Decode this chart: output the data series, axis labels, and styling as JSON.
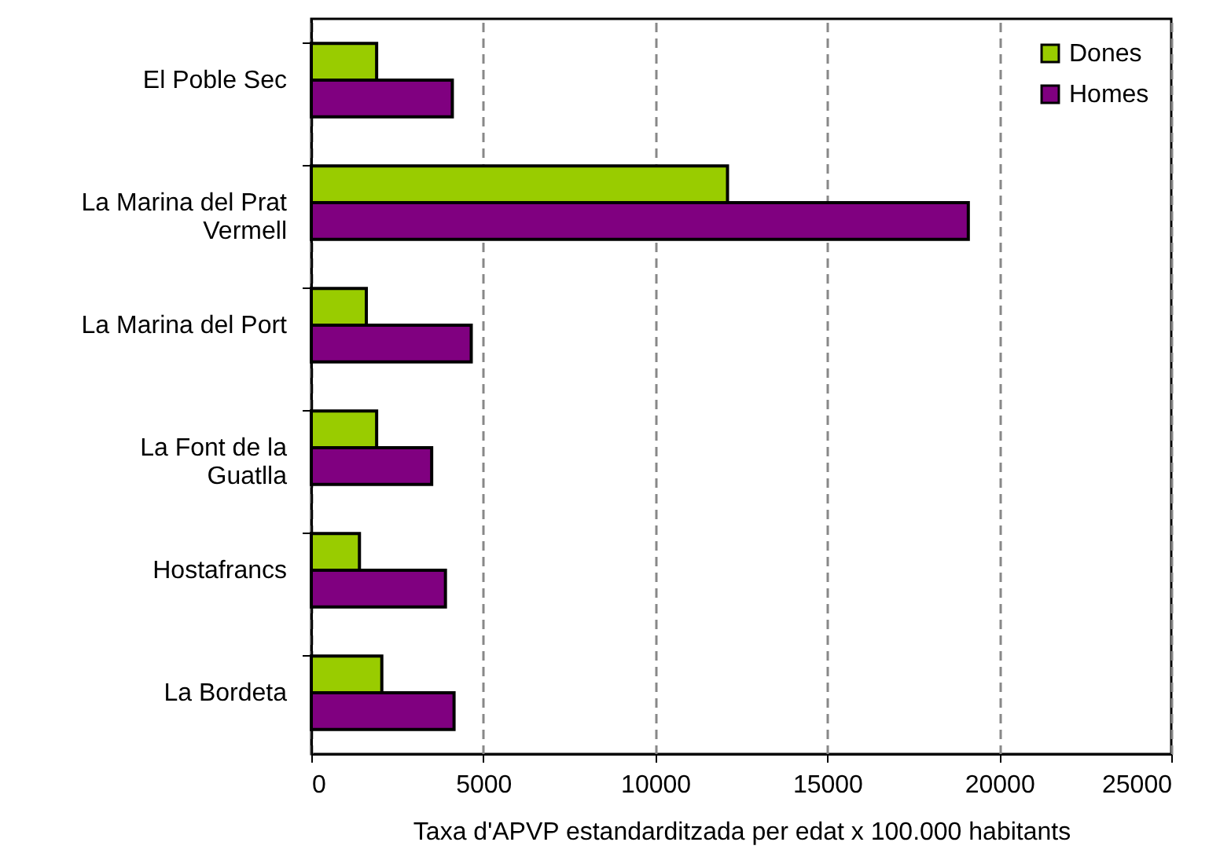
{
  "chart_data": {
    "type": "bar",
    "orientation": "horizontal",
    "categories": [
      "El Poble Sec",
      "La Marina del Prat Vermell",
      "La Marina del Port",
      "La Font de la Guatlla",
      "Hostafrancs",
      "La Bordeta"
    ],
    "series": [
      {
        "name": "Dones",
        "color": "#99cc00",
        "values": [
          1900,
          12100,
          1600,
          1900,
          1400,
          2050
        ]
      },
      {
        "name": "Homes",
        "color": "#800080",
        "values": [
          4100,
          19100,
          4650,
          3500,
          3900,
          4150
        ]
      }
    ],
    "xlim": [
      0,
      25000
    ],
    "xticks": [
      0,
      5000,
      10000,
      15000,
      20000,
      25000
    ],
    "xlabel": "Taxa d'APVP estandarditzada per edat x 100.000 habitants",
    "grid": "x",
    "legend": "top right"
  }
}
